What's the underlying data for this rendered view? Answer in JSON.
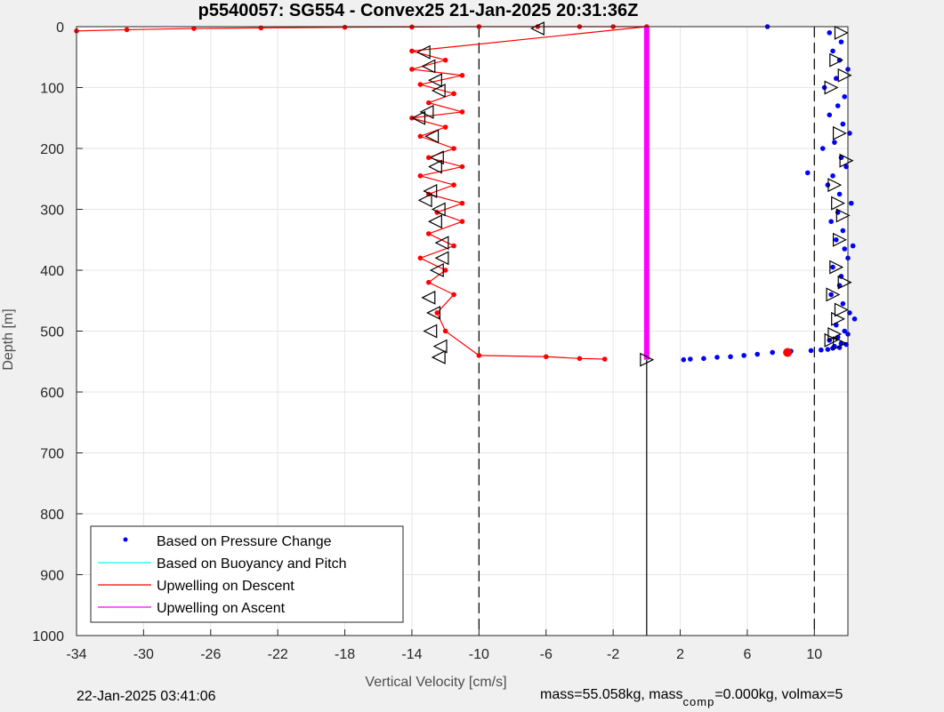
{
  "chart_data": {
    "type": "scatter",
    "title": "p5540057: SG554 - Convex25 21-Jan-2025 20:31:36Z",
    "xlabel": "Vertical Velocity [cm/s]",
    "ylabel": "Depth [m]",
    "xlim": [
      -34,
      12
    ],
    "ylim": [
      0,
      1000
    ],
    "y_reversed": true,
    "grid": true,
    "x_ticks": [
      -34,
      -30,
      -26,
      -22,
      -18,
      -14,
      -10,
      -6,
      -2,
      2,
      6,
      10
    ],
    "y_ticks": [
      0,
      100,
      200,
      300,
      400,
      500,
      600,
      700,
      800,
      900,
      1000
    ],
    "vlines": [
      -10,
      10
    ],
    "legend": {
      "position": "bottom-left",
      "entries": [
        {
          "label": "Based on Pressure Change",
          "color": "#0000ff",
          "style": "dot"
        },
        {
          "label": "Based on Buoyancy and Pitch",
          "color": "#00ffff",
          "style": "line"
        },
        {
          "label": "Upwelling on Descent",
          "color": "#ff0000",
          "style": "line"
        },
        {
          "label": "Upwelling on Ascent",
          "color": "#ff00ff",
          "style": "line"
        }
      ]
    },
    "series": [
      {
        "name": "Based on Pressure Change",
        "color": "#0000ff",
        "style": "dot",
        "x": [
          7.2,
          10.9,
          11.6,
          11.1,
          11.5,
          12.0,
          11.3,
          10.6,
          11.8,
          11.4,
          10.9,
          11.7,
          12.1,
          11.2,
          10.5,
          11.6,
          11.9,
          11.1,
          10.8,
          11.5,
          12.2,
          11.4,
          11.0,
          11.7,
          9.6,
          11.3,
          11.8,
          12.0,
          11.1,
          11.6,
          12.3,
          11.5,
          11.0,
          11.7,
          12.1,
          12.4,
          11.3,
          11.8,
          12.0,
          11.4,
          10.9,
          11.6,
          11.9,
          11.2,
          11.5,
          11.1,
          10.8,
          10.4,
          9.8,
          8.6,
          7.5,
          6.6,
          5.8,
          5.0,
          4.2,
          3.4,
          2.6,
          2.2
        ],
        "y": [
          0,
          10,
          25,
          40,
          55,
          70,
          85,
          100,
          115,
          130,
          145,
          160,
          175,
          190,
          200,
          215,
          230,
          245,
          260,
          275,
          290,
          305,
          320,
          335,
          240,
          350,
          365,
          380,
          395,
          410,
          360,
          425,
          440,
          455,
          470,
          480,
          490,
          500,
          505,
          510,
          515,
          520,
          522,
          525,
          527,
          528,
          530,
          531,
          532,
          533,
          535,
          538,
          540,
          542,
          543,
          545,
          546,
          547
        ]
      },
      {
        "name": "Upwelling on Descent",
        "color": "#ff0000",
        "style": "line-dot",
        "x": [
          -34,
          -31,
          -27,
          -23,
          -18,
          -14,
          -10,
          -6.5,
          -4,
          -2,
          0,
          -14,
          -12,
          -14,
          -11,
          -13.5,
          -11.5,
          -13,
          -11,
          -14,
          -12,
          -13.5,
          -11.5,
          -13,
          -11,
          -13.5,
          -11.5,
          -13,
          -11,
          -12.5,
          -11,
          -13,
          -11.5,
          -13.5,
          -12,
          -13,
          -11.5,
          -12.5,
          -12,
          -10,
          -6,
          -4,
          -2.5
        ],
        "y": [
          7,
          5,
          3,
          2,
          1,
          0.5,
          0,
          0,
          0,
          0,
          0,
          40,
          55,
          70,
          80,
          95,
          110,
          125,
          140,
          150,
          165,
          180,
          200,
          215,
          230,
          245,
          260,
          275,
          290,
          305,
          320,
          340,
          360,
          380,
          400,
          420,
          440,
          470,
          500,
          540,
          542,
          545,
          546
        ]
      },
      {
        "name": "Upwelling on Ascent",
        "color": "#ff00ff",
        "style": "line",
        "x": [
          0,
          0
        ],
        "y": [
          0,
          547
        ]
      }
    ],
    "markers": {
      "descent_triangles_x": [
        -6.5,
        -13.3,
        -13.0,
        -12.6,
        -12.4,
        -13.1,
        -13.6,
        -12.8,
        -12.5,
        -12.6,
        -12.9,
        -13.2,
        -12.4,
        -12.2,
        -12.5,
        -13.0,
        -12.7,
        -12.9,
        -12.3,
        -12.4,
        -12.2,
        -12.6
      ],
      "descent_triangles_y": [
        3,
        42,
        65,
        88,
        105,
        140,
        150,
        180,
        215,
        230,
        270,
        285,
        300,
        355,
        400,
        445,
        470,
        500,
        525,
        543,
        380,
        320
      ],
      "ascent_triangles_x": [
        11.6,
        11.3,
        11.8,
        11.0,
        11.5,
        11.9,
        11.2,
        11.4,
        11.7,
        11.5,
        11.3,
        11.8,
        11.1,
        11.6,
        11.4,
        11.2,
        11.0,
        11.5,
        0
      ],
      "ascent_triangles_y": [
        10,
        55,
        80,
        100,
        175,
        220,
        260,
        290,
        310,
        350,
        395,
        420,
        440,
        465,
        480,
        505,
        515,
        520,
        547
      ],
      "red_circle": {
        "x": 8.4,
        "y": 535
      }
    }
  },
  "footer": {
    "timestamp": "22-Jan-2025 03:41:06",
    "mass_text": "mass=55.058kg, mass",
    "comp_sub": "comp",
    "comp_text": "=0.000kg, volmax=5"
  }
}
